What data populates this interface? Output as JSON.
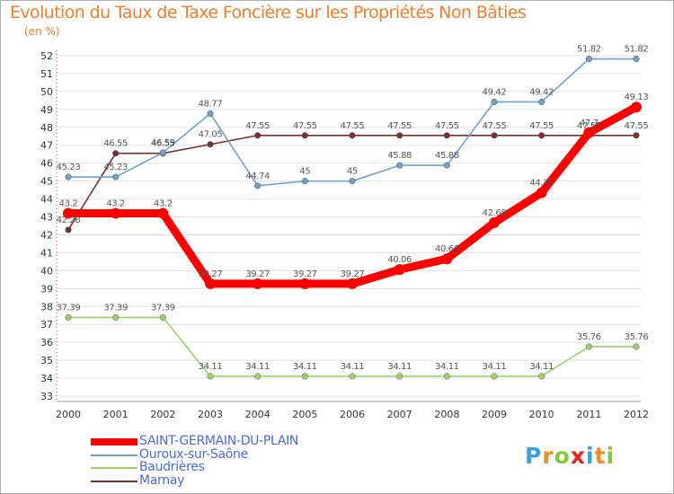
{
  "colors": {
    "title": "#f07c2c",
    "legend_text": "#4a6bd6",
    "grid": "#e0e0e0",
    "axis": "#999999"
  },
  "chart_data": {
    "type": "line",
    "title": "Evolution du Taux de Taxe Foncière sur les Propriétés Non Bâties",
    "ylabel": "(en %)",
    "xlabel": "",
    "x": [
      "2000",
      "2001",
      "2002",
      "2003",
      "2004",
      "2005",
      "2006",
      "2007",
      "2008",
      "2009",
      "2010",
      "2011",
      "2012"
    ],
    "ylim": [
      33,
      52
    ],
    "yticks": [
      "33",
      "34",
      "35",
      "36",
      "37",
      "38",
      "39",
      "40",
      "41",
      "42",
      "43",
      "44",
      "45",
      "46",
      "47",
      "48",
      "49",
      "50",
      "51",
      "52"
    ],
    "grid": "horizontal",
    "series": [
      {
        "name": "SAINT-GERMAIN-DU-PLAIN",
        "color": "#ff0000",
        "values": [
          43.2,
          43.2,
          43.2,
          39.27,
          39.27,
          39.27,
          39.27,
          40.06,
          40.66,
          42.68,
          44.35,
          47.7,
          49.13
        ],
        "labels": [
          "43.2",
          "43.2",
          "43.2",
          "39.27",
          "39.27",
          "39.27",
          "39.27",
          "40.06",
          "40.66",
          "42.68",
          "44.35",
          "47.7",
          "49.13"
        ]
      },
      {
        "name": "Ouroux-sur-Saône",
        "color": "#6fa0cc",
        "values": [
          45.23,
          45.23,
          46.59,
          48.77,
          44.74,
          45,
          45,
          45.88,
          45.88,
          49.42,
          49.42,
          51.82,
          51.82
        ],
        "labels": [
          "45.23",
          "45.23",
          "46.59",
          "48.77",
          "44.74",
          "45",
          "45",
          "45.88",
          "45.88",
          "49.42",
          "49.42",
          "51.82",
          "51.82"
        ]
      },
      {
        "name": "Baudrières",
        "color": "#9ad36a",
        "values": [
          37.39,
          37.39,
          37.39,
          34.11,
          34.11,
          34.11,
          34.11,
          34.11,
          34.11,
          34.11,
          34.11,
          35.76,
          35.76
        ],
        "labels": [
          "37.39",
          "37.39",
          "37.39",
          "34.11",
          "34.11",
          "34.11",
          "34.11",
          "34.11",
          "34.11",
          "34.11",
          "34.11",
          "35.76",
          "35.76"
        ]
      },
      {
        "name": "Marnay",
        "color": "#7a2e2e",
        "values": [
          42.28,
          46.55,
          46.55,
          47.05,
          47.55,
          47.55,
          47.55,
          47.55,
          47.55,
          47.55,
          47.55,
          47.55,
          47.55
        ],
        "labels": [
          "42.28",
          "46.55",
          "46.55",
          "47.05",
          "47.55",
          "47.55",
          "47.55",
          "47.55",
          "47.55",
          "47.55",
          "47.55",
          "47.55",
          "47.55"
        ]
      }
    ],
    "legend": "bottom-left"
  },
  "logo": {
    "letters": [
      "P",
      "r",
      "o",
      "x",
      "i",
      "t",
      "i"
    ],
    "colors": [
      "#3aa0d8",
      "#f08c1e",
      "#8cc63f",
      "#e2231a",
      "#3aa0d8",
      "#f08c1e",
      "#8cc63f"
    ]
  }
}
